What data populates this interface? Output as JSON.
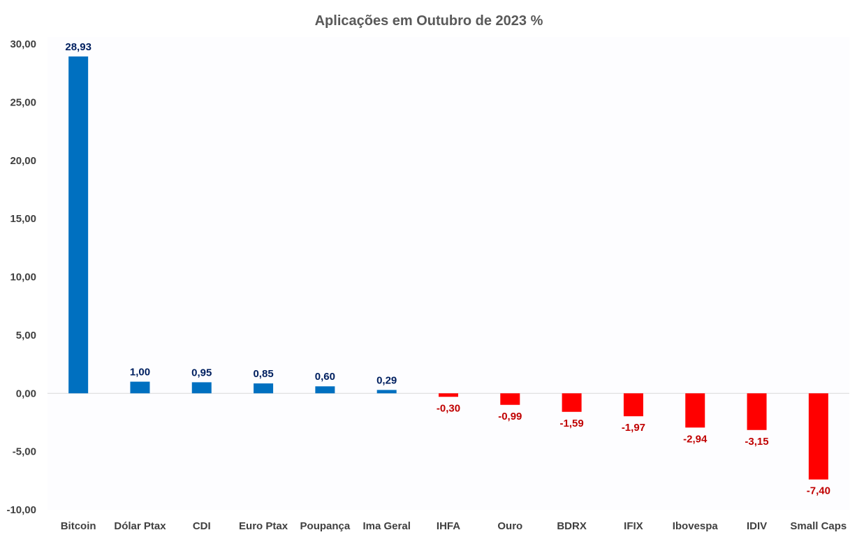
{
  "colors": {
    "positive_bar": "#0070C0",
    "negative_bar": "#FF0000",
    "positive_label": "#002060",
    "negative_label": "#C00000",
    "axis_text": "#404040",
    "title_text": "#595959",
    "zero_line": "#D9D9D9",
    "plot_background": "#FDFDFF"
  },
  "chart_data": {
    "type": "bar",
    "title": "Aplicações em Outubro de 2023 %",
    "xlabel": "",
    "ylabel": "",
    "ylim": [
      -10,
      30
    ],
    "yticks": [
      30,
      25,
      20,
      15,
      10,
      5,
      0,
      -5,
      -10
    ],
    "ytick_labels": [
      "30,00",
      "25,00",
      "20,00",
      "15,00",
      "10,00",
      "5,00",
      "0,00",
      "-5,00",
      "-10,00"
    ],
    "grid": false,
    "legend": "none",
    "categories": [
      "Bitcoin",
      "Dólar Ptax",
      "CDI",
      "Euro Ptax",
      "Poupança",
      "Ima Geral",
      "IHFA",
      "Ouro",
      "BDRX",
      "IFIX",
      "Ibovespa",
      "IDIV",
      "Small Caps"
    ],
    "values": [
      28.93,
      1.0,
      0.95,
      0.85,
      0.6,
      0.29,
      -0.3,
      -0.99,
      -1.59,
      -1.97,
      -2.94,
      -3.15,
      -7.4
    ],
    "value_labels": [
      "28,93",
      "1,00",
      "0,95",
      "0,85",
      "0,60",
      "0,29",
      "-0,30",
      "-0,99",
      "-1,59",
      "-1,97",
      "-2,94",
      "-3,15",
      "-7,40"
    ]
  }
}
